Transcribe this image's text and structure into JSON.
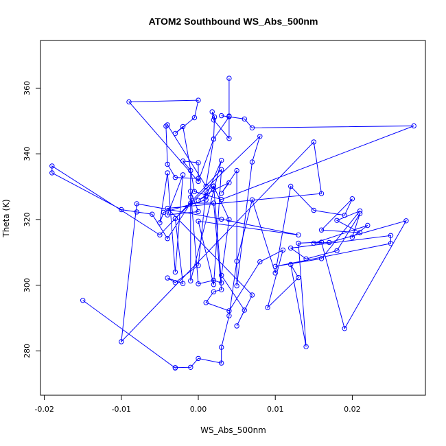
{
  "chart_data": {
    "type": "line",
    "title": "ATOM2 Southbound WS_Abs_500nm",
    "xlabel": "WS_Abs_500nm",
    "ylabel": "Theta (K)",
    "xlim": [
      -0.0205,
      0.0295
    ],
    "ylim": [
      266.5,
      374.5
    ],
    "xticks": [
      -0.02,
      -0.01,
      0.0,
      0.01,
      0.02
    ],
    "xtick_labels": [
      "-0.02",
      "-0.01",
      "0.00",
      "0.01",
      "0.02"
    ],
    "yticks": [
      280,
      300,
      320,
      340,
      360
    ],
    "ytick_labels": [
      "280",
      "300",
      "320",
      "340",
      "360"
    ],
    "grid": false,
    "legend": "none",
    "series_color": "#0000ff",
    "series": [
      {
        "x": [
          0.004,
          0.004,
          0.004,
          0.002,
          0.0018,
          0.0021,
          0.002,
          0.004,
          0.003,
          0.006,
          0.007,
          0.028,
          0.003,
          -0.0005,
          -0.002,
          -0.003,
          -0.0005,
          0.0,
          -0.009,
          0.0,
          0.002,
          0.001,
          -0.004,
          -0.0042,
          -0.004,
          -0.003,
          0.0,
          0.0,
          -0.002,
          -0.001,
          -0.001,
          -0.001,
          0.003,
          0.001,
          0.0,
          0.002,
          0.004,
          0.003,
          0.005,
          0.005,
          0.007,
          0.008,
          -0.003,
          -0.002,
          -0.004,
          -0.003,
          0.0,
          0.001,
          0.002,
          0.003,
          0.002,
          0.0,
          -0.001,
          0.0,
          -0.004,
          -0.002,
          -0.003,
          -0.004,
          -0.005,
          -0.0045,
          0.001,
          0.002,
          0.004,
          0.003,
          0.006,
          0.005,
          0.007,
          -0.004,
          0.016,
          0.015,
          -0.01,
          -0.008,
          0.003,
          0.013,
          0.0,
          0.002,
          0.003,
          -0.005,
          -0.019,
          -0.019,
          -0.01,
          -0.008,
          -0.006,
          -0.004,
          -0.001,
          0.002,
          0.003,
          0.002,
          0.001,
          0.004,
          0.008,
          0.011,
          0.009,
          0.013,
          0.012,
          0.014,
          0.013,
          0.016,
          0.019,
          0.027,
          0.017,
          0.015,
          0.022,
          0.02,
          0.021,
          0.018,
          0.014,
          0.012,
          0.025,
          0.025,
          0.01,
          0.016,
          0.021,
          0.018,
          0.021,
          0.016,
          0.02,
          0.019,
          0.015,
          0.012,
          0.01,
          0.007,
          0.005,
          0.004,
          0.003,
          0.003,
          0.0,
          -0.001,
          -0.003,
          -0.003,
          -0.015
        ],
        "y": [
          363,
          351.5,
          344.7,
          350.3,
          352.8,
          351.2,
          344.5,
          351.3,
          351.6,
          350.6,
          347.9,
          348.5,
          326.1,
          328.5,
          348.3,
          346.2,
          351.0,
          356.3,
          355.8,
          331.6,
          344.5,
          330.1,
          348.8,
          348.4,
          336.8,
          332.8,
          332.5,
          337.3,
          337.8,
          334.9,
          326.8,
          301.3,
          338.0,
          327.1,
          325.8,
          329.0,
          331.2,
          328.0,
          334.9,
          299.8,
          337.5,
          345.3,
          320.3,
          300.5,
          302.2,
          300.8,
          306.0,
          328.6,
          330.2,
          300.7,
          301.5,
          300.4,
          328.6,
          322.4,
          321.4,
          333.6,
          304.0,
          334.2,
          319.0,
          322.2,
          326.0,
          330.1,
          320.0,
          303.0,
          292.4,
          287.6,
          297.0,
          323.4,
          327.9,
          343.6,
          282.8,
          324.8,
          320.1,
          315.3,
          319.5,
          300.2,
          335.2,
          315.3,
          336.3,
          334.2,
          323.0,
          322.3,
          321.6,
          314.2,
          325.0,
          325.0,
          298.6,
          298.0,
          294.7,
          292.2,
          307.1,
          310.7,
          293.2,
          302.3,
          306.3,
          281.3,
          312.8,
          313.1,
          286.8,
          319.6,
          313.0,
          312.8,
          318.2,
          314.6,
          321.8,
          310.5,
          308.0,
          311.3,
          315.1,
          312.7,
          305.7,
          308.1,
          322.6,
          319.7,
          316.0,
          316.8,
          326.3,
          321.3,
          322.8,
          330.1,
          303.7,
          326.0,
          307.3,
          290.7,
          281.1,
          276.3,
          277.7,
          275.0,
          274.9,
          274.8,
          295.4
        ]
      }
    ]
  }
}
